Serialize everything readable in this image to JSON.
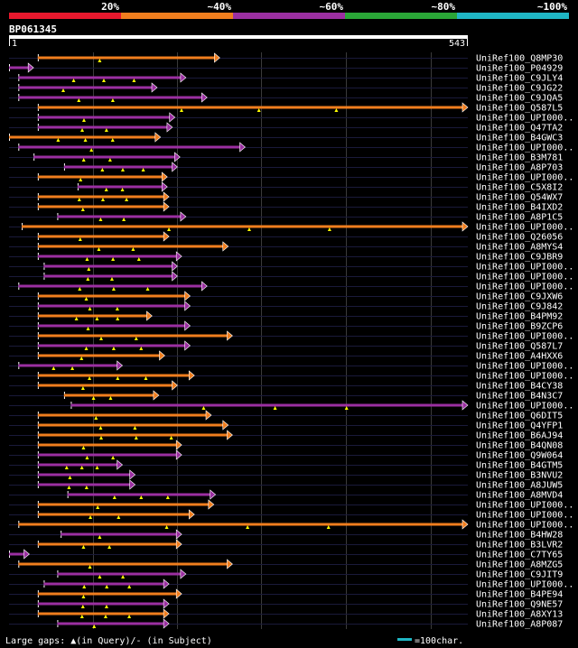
{
  "query_id": "BP061345",
  "query_start": "1",
  "query_end": "543",
  "legend_caption": "Large gaps: ▲(in Query)/- (in Subject)",
  "scale_caption": "=100char.",
  "identity_scale": [
    {
      "label": "20%",
      "color": "#e8182d"
    },
    {
      "label": "~40%",
      "color": "#f07e1e"
    },
    {
      "label": "~60%",
      "color": "#9b2fa1"
    },
    {
      "label": "~80%",
      "color": "#2aa637"
    },
    {
      "label": "~100%",
      "color": "#1fb6c4"
    }
  ],
  "colors": {
    "orange": "#f07e1e",
    "purple": "#9b2fa1",
    "gap": "#ffff00",
    "scale_bar": "#1fb6c4"
  },
  "chart_data": {
    "type": "alignment-overview",
    "x_axis": {
      "unit": "query residue",
      "min": 1,
      "max": 543
    },
    "hits": [
      {
        "name": "UniRef100_Q8MP30",
        "start": 35,
        "end": 250,
        "identity": "~40%"
      },
      {
        "name": "UniRef100_P04929",
        "start": 1,
        "end": 30,
        "identity": "~60%"
      },
      {
        "name": "UniRef100_C9JLY4",
        "start": 12,
        "end": 210,
        "identity": "~60%"
      },
      {
        "name": "UniRef100_C9JG22",
        "start": 12,
        "end": 176,
        "identity": "~60%"
      },
      {
        "name": "UniRef100_C9JQA5",
        "start": 12,
        "end": 235,
        "identity": "~60%"
      },
      {
        "name": "UniRef100_Q587L5",
        "start": 35,
        "end": 543,
        "identity": "~40%"
      },
      {
        "name": "UniRef100_UPI000..",
        "start": 35,
        "end": 197,
        "identity": "~60%"
      },
      {
        "name": "UniRef100_Q47TA2",
        "start": 35,
        "end": 194,
        "identity": "~60%"
      },
      {
        "name": "UniRef100_B4GWC3",
        "start": 1,
        "end": 180,
        "identity": "~40%"
      },
      {
        "name": "UniRef100_UPI000..",
        "start": 12,
        "end": 280,
        "identity": "~60%"
      },
      {
        "name": "UniRef100_B3M781",
        "start": 30,
        "end": 203,
        "identity": "~60%"
      },
      {
        "name": "UniRef100_A8P703",
        "start": 66,
        "end": 200,
        "identity": "~60%"
      },
      {
        "name": "UniRef100_UPI000..",
        "start": 35,
        "end": 188,
        "identity": "~40%"
      },
      {
        "name": "UniRef100_C5X8I2",
        "start": 82,
        "end": 188,
        "identity": "~60%"
      },
      {
        "name": "UniRef100_Q54WX7",
        "start": 35,
        "end": 190,
        "identity": "~40%"
      },
      {
        "name": "UniRef100_B4IXD2",
        "start": 35,
        "end": 190,
        "identity": "~40%"
      },
      {
        "name": "UniRef100_A8P1C5",
        "start": 58,
        "end": 210,
        "identity": "~60%"
      },
      {
        "name": "UniRef100_UPI000..",
        "start": 16,
        "end": 543,
        "identity": "~40%"
      },
      {
        "name": "UniRef100_Q26056",
        "start": 35,
        "end": 190,
        "identity": "~40%"
      },
      {
        "name": "UniRef100_A8MYS4",
        "start": 35,
        "end": 260,
        "identity": "~40%"
      },
      {
        "name": "UniRef100_C9JBR9",
        "start": 35,
        "end": 205,
        "identity": "~60%"
      },
      {
        "name": "UniRef100_UPI000..",
        "start": 42,
        "end": 200,
        "identity": "~60%"
      },
      {
        "name": "UniRef100_UPI000..",
        "start": 42,
        "end": 200,
        "identity": "~60%"
      },
      {
        "name": "UniRef100_UPI000..",
        "start": 12,
        "end": 235,
        "identity": "~60%"
      },
      {
        "name": "UniRef100_C9JXW6",
        "start": 35,
        "end": 215,
        "identity": "~40%"
      },
      {
        "name": "UniRef100_C9J842",
        "start": 35,
        "end": 215,
        "identity": "~60%"
      },
      {
        "name": "UniRef100_B4PM92",
        "start": 35,
        "end": 170,
        "identity": "~40%"
      },
      {
        "name": "UniRef100_B9ZCP6",
        "start": 35,
        "end": 215,
        "identity": "~60%"
      },
      {
        "name": "UniRef100_UPI000..",
        "start": 35,
        "end": 265,
        "identity": "~40%"
      },
      {
        "name": "UniRef100_Q587L7",
        "start": 35,
        "end": 215,
        "identity": "~60%"
      },
      {
        "name": "UniRef100_A4HXX6",
        "start": 35,
        "end": 185,
        "identity": "~40%"
      },
      {
        "name": "UniRef100_UPI000..",
        "start": 12,
        "end": 135,
        "identity": "~60%"
      },
      {
        "name": "UniRef100_UPI000..",
        "start": 35,
        "end": 220,
        "identity": "~40%"
      },
      {
        "name": "UniRef100_B4CY38",
        "start": 35,
        "end": 200,
        "identity": "~40%"
      },
      {
        "name": "UniRef100_B4N3C7",
        "start": 66,
        "end": 178,
        "identity": "~40%"
      },
      {
        "name": "UniRef100_UPI000..",
        "start": 74,
        "end": 543,
        "identity": "~60%"
      },
      {
        "name": "UniRef100_Q6DIT5",
        "start": 35,
        "end": 240,
        "identity": "~40%"
      },
      {
        "name": "UniRef100_Q4YFP1",
        "start": 35,
        "end": 260,
        "identity": "~40%"
      },
      {
        "name": "UniRef100_B6AJ94",
        "start": 35,
        "end": 265,
        "identity": "~40%"
      },
      {
        "name": "UniRef100_B4QN08",
        "start": 35,
        "end": 205,
        "identity": "~40%"
      },
      {
        "name": "UniRef100_Q9W064",
        "start": 35,
        "end": 205,
        "identity": "~60%"
      },
      {
        "name": "UniRef100_B4GTM5",
        "start": 35,
        "end": 135,
        "identity": "~60%"
      },
      {
        "name": "UniRef100_B3NVU2",
        "start": 35,
        "end": 150,
        "identity": "~60%"
      },
      {
        "name": "UniRef100_A8JUW5",
        "start": 35,
        "end": 150,
        "identity": "~60%"
      },
      {
        "name": "UniRef100_A8MVD4",
        "start": 70,
        "end": 245,
        "identity": "~60%"
      },
      {
        "name": "UniRef100_UPI000..",
        "start": 35,
        "end": 243,
        "identity": "~40%"
      },
      {
        "name": "UniRef100_UPI000..",
        "start": 35,
        "end": 220,
        "identity": "~40%"
      },
      {
        "name": "UniRef100_UPI000..",
        "start": 12,
        "end": 543,
        "identity": "~40%"
      },
      {
        "name": "UniRef100_B4HW28",
        "start": 62,
        "end": 205,
        "identity": "~60%"
      },
      {
        "name": "UniRef100_B3LVR2",
        "start": 35,
        "end": 205,
        "identity": "~40%"
      },
      {
        "name": "UniRef100_C7TY65",
        "start": 1,
        "end": 25,
        "identity": "~60%"
      },
      {
        "name": "UniRef100_A8MZG5",
        "start": 12,
        "end": 265,
        "identity": "~40%"
      },
      {
        "name": "UniRef100_C9JIT9",
        "start": 58,
        "end": 210,
        "identity": "~60%"
      },
      {
        "name": "UniRef100_UPI000..",
        "start": 42,
        "end": 190,
        "identity": "~60%"
      },
      {
        "name": "UniRef100_B4PE94",
        "start": 35,
        "end": 205,
        "identity": "~40%"
      },
      {
        "name": "UniRef100_Q9NE57",
        "start": 35,
        "end": 190,
        "identity": "~60%"
      },
      {
        "name": "UniRef100_A8XY13",
        "start": 35,
        "end": 190,
        "identity": "~40%"
      },
      {
        "name": "UniRef100_A8P087",
        "start": 58,
        "end": 190,
        "identity": "~60%"
      }
    ]
  }
}
